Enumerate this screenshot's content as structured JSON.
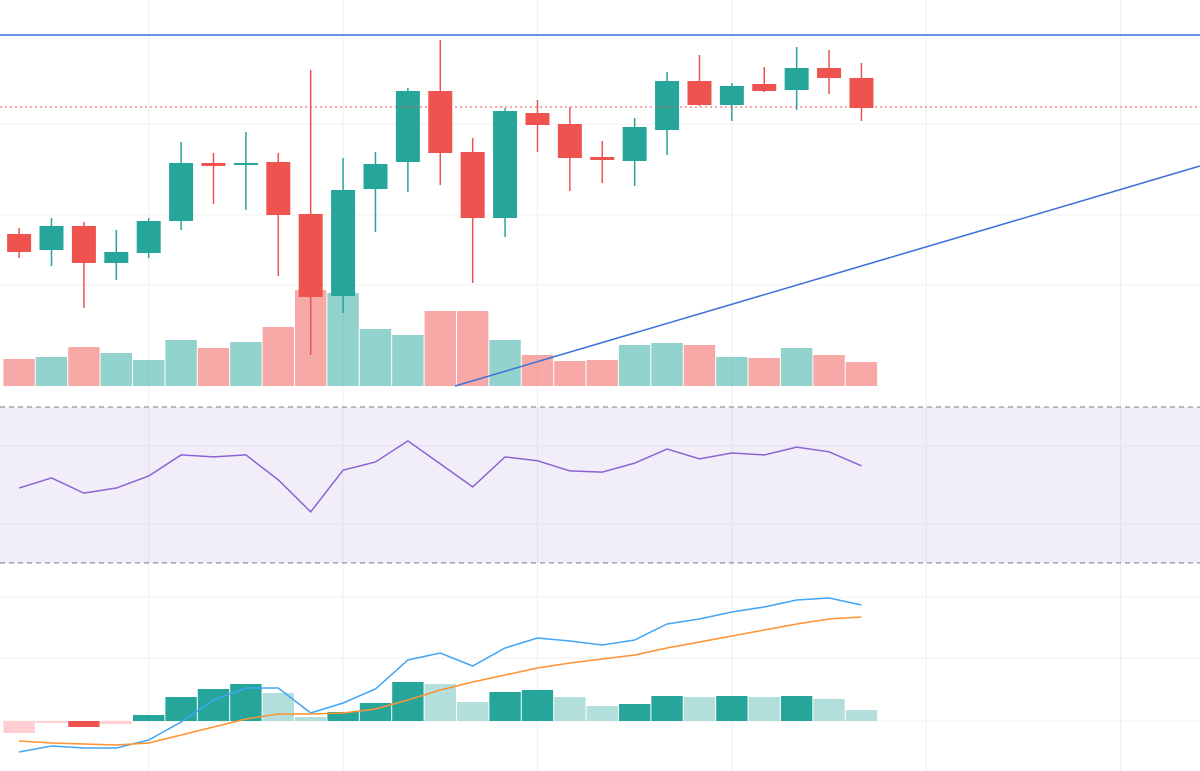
{
  "chart_data": [
    {
      "type": "candlestick",
      "open": [
        166,
        150,
        174,
        137,
        147,
        179,
        237,
        235,
        238,
        186,
        104,
        211,
        238,
        309,
        248,
        182,
        287,
        276,
        243,
        239,
        270,
        319,
        295,
        316,
        310,
        332,
        322
      ],
      "high": [
        172,
        182,
        178,
        170,
        182,
        258,
        247,
        268,
        247,
        330,
        242,
        248,
        312,
        360,
        262,
        292,
        300,
        293,
        259,
        282,
        328,
        345,
        317,
        333,
        353,
        350,
        337
      ],
      "low": [
        142,
        134,
        92,
        120,
        142,
        170,
        196,
        190,
        124,
        45,
        87,
        168,
        208,
        215,
        117,
        163,
        248,
        209,
        217,
        214,
        245,
        294,
        279,
        308,
        290,
        306,
        279
      ],
      "close": [
        148,
        174,
        137,
        148,
        179,
        237,
        234,
        237,
        185,
        103,
        210,
        236,
        309,
        247,
        182,
        289,
        275,
        242,
        240,
        273,
        319,
        295,
        314,
        309,
        332,
        322,
        292
      ],
      "up_color": "#26a69a",
      "down_color": "#ef5350",
      "xlim": [
        -0.59,
        36.45
      ],
      "ylim": [
        0,
        400
      ],
      "xgrid": [
        4,
        10,
        16,
        22,
        28,
        34
      ],
      "ygrid": [
        115,
        185,
        276
      ],
      "volume": {
        "values": [
          27,
          29,
          39,
          33,
          26,
          46,
          38,
          44,
          59,
          96,
          93,
          57,
          51,
          75,
          75,
          46,
          31,
          25,
          26,
          41,
          43,
          41,
          29,
          28,
          38,
          31,
          24
        ],
        "ylim": [
          0,
          386
        ],
        "up_color": "rgba(38,166,154,0.5)",
        "down_color": "rgba(239,83,80,0.5)"
      },
      "hlines": [
        {
          "value": 365,
          "color": "#3a6fd8",
          "style": "solid"
        },
        {
          "value": 293,
          "color": "#ef5350",
          "style": "dotted"
        }
      ],
      "trendline": {
        "x": [
          13.46,
          36.45
        ],
        "y": [
          14,
          234
        ],
        "color": "#3a6fd8"
      }
    },
    {
      "type": "line",
      "values": [
        49.2,
        51.8,
        47.9,
        49.2,
        52.3,
        57.7,
        57.2,
        57.7,
        51.3,
        43.1,
        53.8,
        55.9,
        61.3,
        55.4,
        49.5,
        57.2,
        56.2,
        53.6,
        53.3,
        55.6,
        59.2,
        56.7,
        58.2,
        57.7,
        59.7,
        58.5,
        54.9
      ],
      "color": "#8c63d4",
      "ylim": [
        25.6,
        71.8
      ],
      "band": [
        30,
        70
      ],
      "band_color": "rgba(126,87,194,0.1)",
      "ygrid": [
        40,
        60
      ]
    },
    {
      "type": "macd",
      "histogram": [
        -1.2,
        -0.2,
        -0.6,
        -0.3,
        0.6,
        2.4,
        3.2,
        3.7,
        2.8,
        0.4,
        0.9,
        1.8,
        3.9,
        3.7,
        1.9,
        2.9,
        3.1,
        2.4,
        1.5,
        1.7,
        2.5,
        2.4,
        2.5,
        2.4,
        2.5,
        2.2,
        1.1
      ],
      "macd": [
        -3.1,
        -2.5,
        -2.7,
        -2.7,
        -1.9,
        -0.1,
        2.1,
        3.3,
        3.3,
        0.8,
        1.8,
        3.2,
        6.1,
        6.8,
        5.5,
        7.3,
        8.3,
        8.0,
        7.6,
        8.1,
        9.7,
        10.2,
        10.9,
        11.4,
        12.1,
        12.3,
        11.6
      ],
      "signal": [
        -2.0,
        -2.2,
        -2.3,
        -2.4,
        -2.2,
        -1.4,
        -0.6,
        0.2,
        0.7,
        0.7,
        0.8,
        1.2,
        2.1,
        3.1,
        3.9,
        4.6,
        5.3,
        5.8,
        6.2,
        6.6,
        7.3,
        7.9,
        8.5,
        9.1,
        9.7,
        10.2,
        10.4
      ],
      "macd_color": "#42a5f5",
      "signal_color": "#ff9232",
      "hist_colors": [
        "#26a69a",
        "#b2dfdb",
        "#ef5350",
        "#ffcdd2"
      ],
      "ylim": [
        -5.0,
        14.1
      ],
      "ygrid": [
        0,
        6.3,
        12.4
      ]
    }
  ]
}
